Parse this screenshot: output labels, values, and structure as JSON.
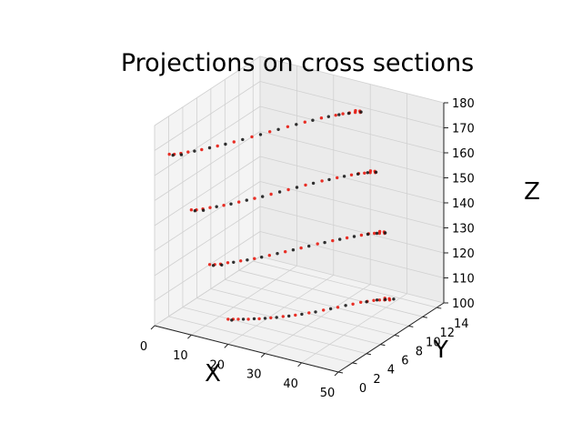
{
  "chart_data": {
    "type": "scatter",
    "projection": "3d",
    "title": "Projections on cross sections",
    "xlabel": "X",
    "ylabel": "Y",
    "zlabel": "Z",
    "xlim": [
      0,
      50
    ],
    "ylim": [
      0,
      15
    ],
    "zlim": [
      100,
      180
    ],
    "xticks": [
      "0",
      "10",
      "20",
      "30",
      "40",
      "50"
    ],
    "yticks": [
      "0",
      "2",
      "4",
      "6",
      "8",
      "10",
      "12",
      "14"
    ],
    "zticks": [
      "100",
      "110",
      "120",
      "130",
      "140",
      "150",
      "160",
      "170",
      "180"
    ],
    "grid": true,
    "series": [
      {
        "color": "#e8190f",
        "cross_sections": [
          {
            "z": 110,
            "points": [
              [
                20,
                0
              ],
              [
                21,
                0.2
              ],
              [
                22,
                0.4
              ],
              [
                24,
                0.8
              ],
              [
                26,
                1.3
              ],
              [
                28,
                1.9
              ],
              [
                30,
                2.6
              ],
              [
                32,
                3.3
              ],
              [
                34,
                4.2
              ],
              [
                36,
                5.2
              ],
              [
                38,
                6.2
              ],
              [
                40,
                7.3
              ],
              [
                41,
                7.9
              ],
              [
                42,
                8.3
              ],
              [
                43,
                8.7
              ],
              [
                44,
                9.0
              ],
              [
                45,
                9.2
              ],
              [
                46,
                9.4
              ],
              [
                45.5,
                9.6
              ],
              [
                44.5,
                9.5
              ]
            ]
          },
          {
            "z": 130,
            "points": [
              [
                15,
                0
              ],
              [
                16,
                0.2
              ],
              [
                17,
                0.5
              ],
              [
                18,
                1.0
              ],
              [
                20,
                1.8
              ],
              [
                22,
                2.7
              ],
              [
                24,
                3.8
              ],
              [
                26,
                5.0
              ],
              [
                28,
                6.2
              ],
              [
                30,
                7.5
              ],
              [
                32,
                8.6
              ],
              [
                34,
                9.6
              ],
              [
                36,
                10.6
              ],
              [
                37,
                11.1
              ],
              [
                38,
                11.4
              ],
              [
                39,
                11.6
              ],
              [
                40,
                11.8
              ],
              [
                39.5,
                12.0
              ],
              [
                38.5,
                11.9
              ]
            ]
          },
          {
            "z": 150,
            "points": [
              [
                10,
                0
              ],
              [
                11,
                0.2
              ],
              [
                12,
                0.6
              ],
              [
                13,
                1.1
              ],
              [
                15,
                2.0
              ],
              [
                17,
                3.1
              ],
              [
                19,
                4.3
              ],
              [
                21,
                5.6
              ],
              [
                23,
                7.0
              ],
              [
                25,
                8.4
              ],
              [
                27,
                9.7
              ],
              [
                29,
                10.8
              ],
              [
                31,
                11.8
              ],
              [
                32,
                12.3
              ],
              [
                33,
                12.6
              ],
              [
                34,
                12.9
              ],
              [
                35,
                13.1
              ],
              [
                34.5,
                13.3
              ],
              [
                33.5,
                13.2
              ]
            ]
          },
          {
            "z": 170,
            "points": [
              [
                4,
                0
              ],
              [
                5,
                0.2
              ],
              [
                6,
                0.6
              ],
              [
                7,
                1.1
              ],
              [
                9,
                2.0
              ],
              [
                11,
                3.2
              ],
              [
                13,
                4.5
              ],
              [
                15,
                6.0
              ],
              [
                17,
                7.5
              ],
              [
                19,
                9.0
              ],
              [
                21,
                10.4
              ],
              [
                23,
                11.7
              ],
              [
                25,
                12.7
              ],
              [
                26,
                13.2
              ],
              [
                27,
                13.6
              ],
              [
                28,
                13.9
              ],
              [
                29,
                14.1
              ],
              [
                28.5,
                14.3
              ],
              [
                27.5,
                14.2
              ]
            ]
          }
        ]
      },
      {
        "color": "#1a1a1a",
        "cross_sections": [
          {
            "z": 110,
            "points": [
              [
                21,
                0
              ],
              [
                23,
                0.6
              ],
              [
                25,
                1.1
              ],
              [
                27,
                1.6
              ],
              [
                29,
                2.2
              ],
              [
                31,
                2.9
              ],
              [
                33,
                3.7
              ],
              [
                35,
                4.6
              ],
              [
                37,
                5.7
              ],
              [
                39,
                6.8
              ],
              [
                42,
                8.2
              ],
              [
                43.5,
                8.9
              ],
              [
                45,
                9.3
              ],
              [
                46.5,
                9.7
              ]
            ]
          },
          {
            "z": 130,
            "points": [
              [
                16,
                0
              ],
              [
                17.5,
                0.4
              ],
              [
                19,
                1.3
              ],
              [
                21,
                2.2
              ],
              [
                23,
                3.2
              ],
              [
                25,
                4.4
              ],
              [
                27,
                5.6
              ],
              [
                29,
                6.8
              ],
              [
                31,
                8.0
              ],
              [
                33,
                9.1
              ],
              [
                35,
                10.1
              ],
              [
                37,
                11.0
              ],
              [
                38.5,
                11.5
              ],
              [
                40,
                11.9
              ]
            ]
          },
          {
            "z": 150,
            "points": [
              [
                11,
                0
              ],
              [
                12.5,
                0.4
              ],
              [
                14,
                1.5
              ],
              [
                16,
                2.5
              ],
              [
                18,
                3.7
              ],
              [
                20,
                4.9
              ],
              [
                22,
                6.3
              ],
              [
                24,
                7.7
              ],
              [
                26,
                9.0
              ],
              [
                28,
                10.2
              ],
              [
                30,
                11.3
              ],
              [
                32,
                12.2
              ],
              [
                33.5,
                12.8
              ],
              [
                35,
                13.2
              ]
            ]
          },
          {
            "z": 170,
            "points": [
              [
                5,
                0
              ],
              [
                6.5,
                0.4
              ],
              [
                8,
                1.5
              ],
              [
                10,
                2.6
              ],
              [
                12,
                3.8
              ],
              [
                14,
                5.2
              ],
              [
                16,
                6.7
              ],
              [
                18,
                8.2
              ],
              [
                20,
                9.7
              ],
              [
                22,
                11.0
              ],
              [
                24,
                12.2
              ],
              [
                25.5,
                12.9
              ],
              [
                27,
                13.5
              ],
              [
                29,
                14.2
              ]
            ]
          }
        ]
      }
    ]
  }
}
